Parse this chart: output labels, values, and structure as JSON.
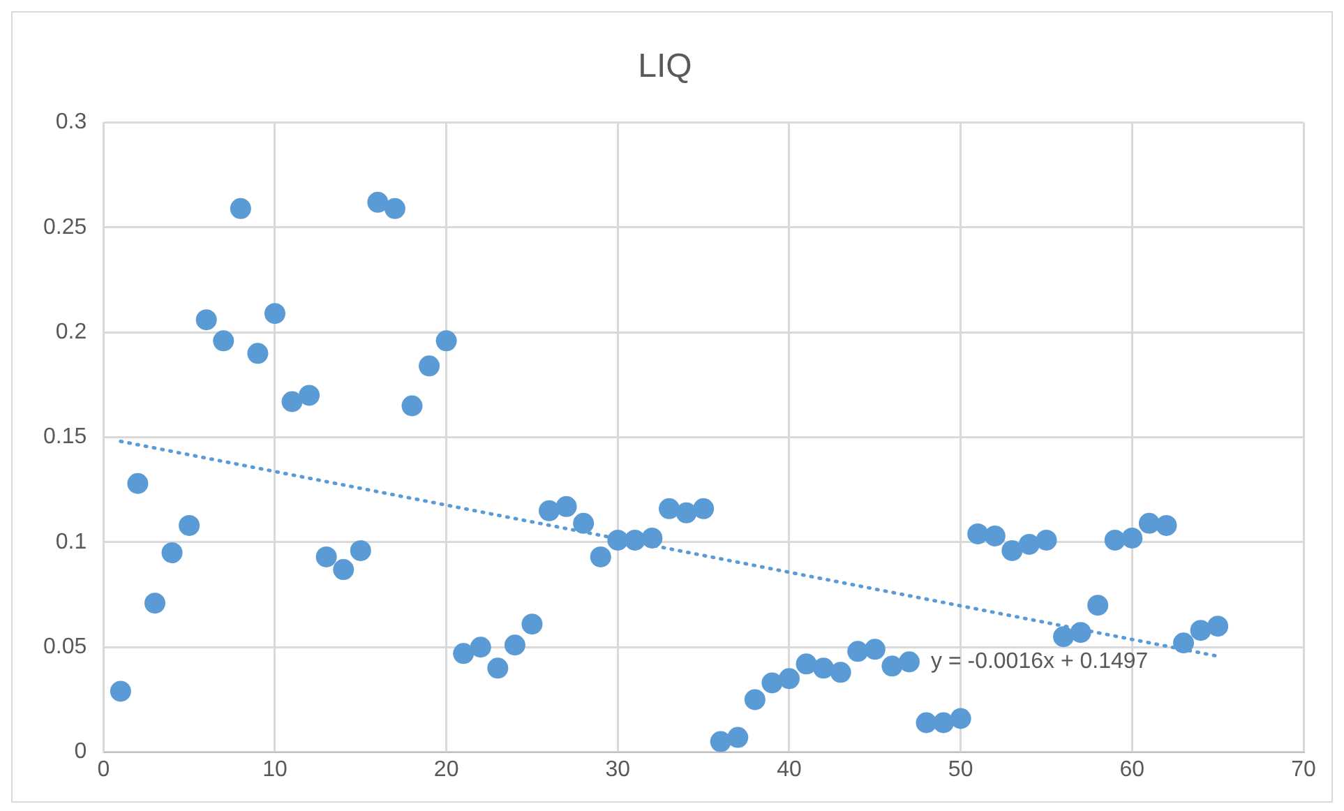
{
  "chart_data": {
    "type": "scatter",
    "title": "LIQ",
    "marker": "circle",
    "grid": true,
    "legend": false,
    "xlim": [
      0,
      70
    ],
    "xticks": [
      0,
      10,
      20,
      30,
      40,
      50,
      60,
      70
    ],
    "ylim": [
      0,
      0.3
    ],
    "yticks": [
      0,
      0.05,
      0.1,
      0.15,
      0.2,
      0.25,
      0.3
    ],
    "series": [
      {
        "color": "#5b9bd5",
        "x": [
          1,
          2,
          3,
          4,
          5,
          6,
          7,
          8,
          9,
          10,
          11,
          12,
          13,
          14,
          15,
          16,
          17,
          18,
          19,
          20,
          21,
          22,
          23,
          24,
          25,
          26,
          27,
          28,
          29,
          30,
          31,
          32,
          33,
          34,
          35,
          36,
          37,
          38,
          39,
          40,
          41,
          42,
          43,
          44,
          45,
          46,
          47,
          48,
          49,
          50,
          51,
          52,
          53,
          54,
          55,
          56,
          57,
          58,
          59,
          60,
          61,
          62,
          63,
          64,
          65
        ],
        "values": [
          0.029,
          0.128,
          0.071,
          0.095,
          0.108,
          0.206,
          0.196,
          0.259,
          0.19,
          0.209,
          0.167,
          0.17,
          0.093,
          0.087,
          0.096,
          0.262,
          0.259,
          0.165,
          0.184,
          0.196,
          0.047,
          0.05,
          0.04,
          0.051,
          0.061,
          0.115,
          0.117,
          0.109,
          0.093,
          0.101,
          0.101,
          0.102,
          0.116,
          0.114,
          0.116,
          0.005,
          0.007,
          0.025,
          0.033,
          0.035,
          0.042,
          0.04,
          0.038,
          0.048,
          0.049,
          0.041,
          0.043,
          0.014,
          0.014,
          0.016,
          0.104,
          0.103,
          0.096,
          0.099,
          0.101,
          0.055,
          0.057,
          0.07,
          0.101,
          0.102,
          0.109,
          0.108,
          0.052,
          0.058,
          0.06
        ]
      },
      {
        "type": "line",
        "color": "#5b9bd5",
        "line_style": "dotted",
        "marker": "none",
        "x": [
          1,
          65
        ],
        "values": [
          0.1481,
          0.0457
        ]
      }
    ],
    "annotations": [
      "y = -0.0016x + 0.1497"
    ]
  }
}
